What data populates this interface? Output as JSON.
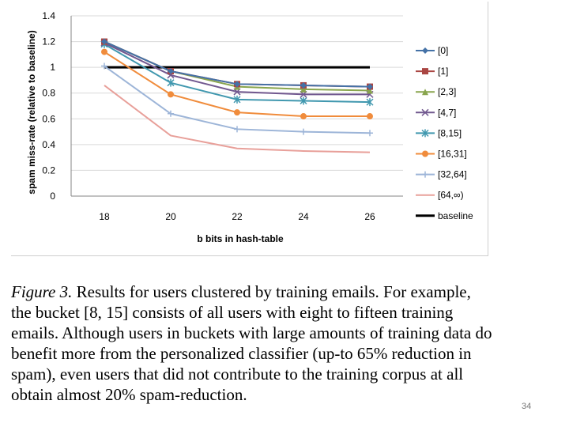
{
  "chart_data": {
    "type": "line",
    "title": "",
    "xlabel": "b bits in hash-table",
    "ylabel": "spam miss-rate (relative to baseline)",
    "x": [
      18,
      20,
      22,
      24,
      26
    ],
    "xtick_labels": [
      "18",
      "20",
      "22",
      "24",
      "26"
    ],
    "ylim": [
      0,
      1.4
    ],
    "ytick_labels": [
      "0",
      "0.2",
      "0.4",
      "0.6",
      "0.8",
      "1",
      "1.2",
      "1.4"
    ],
    "ytick_values": [
      0,
      0.2,
      0.4,
      0.6,
      0.8,
      1,
      1.2,
      1.4
    ],
    "grid": "horizontal",
    "legend_position": "right",
    "series": [
      {
        "name": "[0]",
        "values": [
          1.2,
          0.97,
          0.87,
          0.86,
          0.85
        ],
        "color": "#4572a7",
        "marker": "diamond"
      },
      {
        "name": "[1]",
        "values": [
          1.2,
          0.97,
          0.87,
          0.86,
          0.85
        ],
        "color": "#aa4643",
        "marker": "square"
      },
      {
        "name": "[2,3]",
        "values": [
          1.2,
          0.97,
          0.85,
          0.83,
          0.82
        ],
        "color": "#89a54e",
        "marker": "triangle"
      },
      {
        "name": "[4,7]",
        "values": [
          1.19,
          0.94,
          0.81,
          0.79,
          0.79
        ],
        "color": "#71588f",
        "marker": "x"
      },
      {
        "name": "[8,15]",
        "values": [
          1.18,
          0.88,
          0.75,
          0.74,
          0.73
        ],
        "color": "#4198af",
        "marker": "star"
      },
      {
        "name": "[16,31]",
        "values": [
          1.12,
          0.79,
          0.65,
          0.62,
          0.62
        ],
        "color": "#f08c3c",
        "marker": "circle"
      },
      {
        "name": "[32,64]",
        "values": [
          1.01,
          0.64,
          0.52,
          0.5,
          0.49
        ],
        "color": "#9db5d8",
        "marker": "plus"
      },
      {
        "name": "[64,∞)",
        "values": [
          0.86,
          0.47,
          0.37,
          0.35,
          0.34
        ],
        "color": "#e8a09a",
        "marker": "none"
      },
      {
        "name": "baseline",
        "values": [
          1,
          1,
          1,
          1,
          1
        ],
        "color": "#000000",
        "marker": "none",
        "width": 3
      }
    ]
  },
  "caption": {
    "label": "Figure 3.",
    "text": " Results for users clustered by training emails. For example, the bucket [8, 15] consists of all users with eight to fifteen training emails. Although users in buckets with large amounts of training data do benefit more from the personalized classifier (up-to 65% reduction in spam), even users that did not contribute to the training corpus at all obtain almost 20% spam-reduction."
  },
  "page_number": "34"
}
